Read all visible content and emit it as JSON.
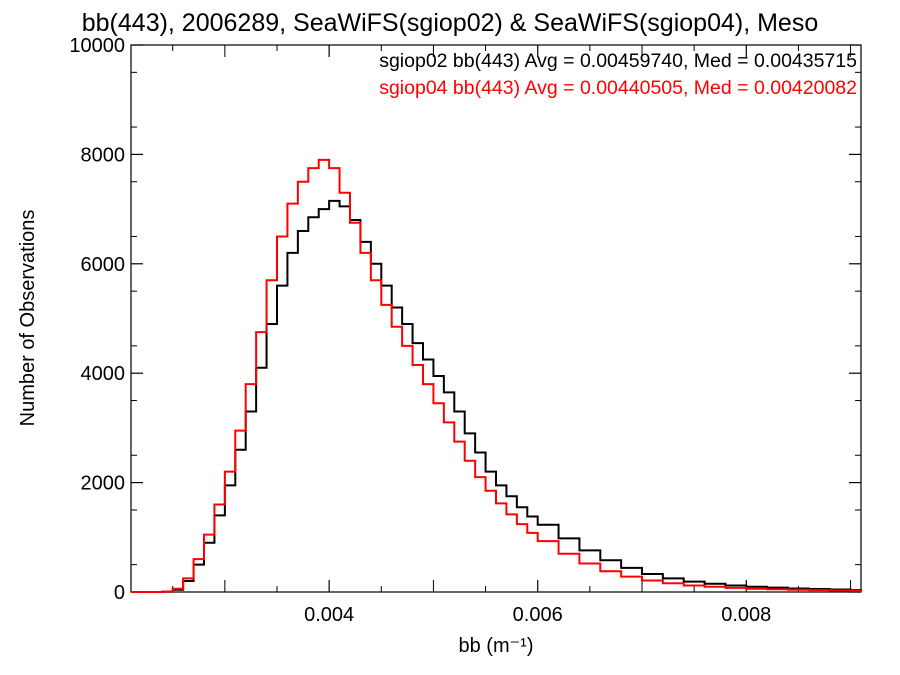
{
  "chart_data": {
    "type": "line",
    "title": "bb(443), 2006289, SeaWiFS(sgiop02) & SeaWiFS(sgiop04), Meso",
    "xlabel": "bb (m⁻¹)",
    "ylabel": "Number of Observations",
    "xlim": [
      0.0021,
      0.0091
    ],
    "ylim": [
      0,
      10000
    ],
    "x_ticks": [
      0.004,
      0.006,
      0.008
    ],
    "x_tick_labels": [
      "0.004",
      "0.006",
      "0.008"
    ],
    "y_ticks": [
      0,
      2000,
      4000,
      6000,
      8000,
      10000
    ],
    "y_tick_labels": [
      "0",
      "2000",
      "4000",
      "6000",
      "8000",
      "10000"
    ],
    "grid": false,
    "legend_position": "top-right",
    "annotations": [
      {
        "text": "sgiop02 bb(443) Avg = 0.00459740, Med = 0.00435715",
        "color": "#000000"
      },
      {
        "text": "sgiop04 bb(443) Avg = 0.00440505, Med = 0.00420082",
        "color": "#ff0000"
      }
    ],
    "series": [
      {
        "color": "#000000",
        "points": [
          [
            0.0021,
            0
          ],
          [
            0.0024,
            5
          ],
          [
            0.0025,
            40
          ],
          [
            0.0026,
            200
          ],
          [
            0.0027,
            500
          ],
          [
            0.0028,
            900
          ],
          [
            0.0029,
            1400
          ],
          [
            0.003,
            1950
          ],
          [
            0.0031,
            2600
          ],
          [
            0.0032,
            3300
          ],
          [
            0.0033,
            4100
          ],
          [
            0.0034,
            4900
          ],
          [
            0.0035,
            5600
          ],
          [
            0.0036,
            6200
          ],
          [
            0.0037,
            6600
          ],
          [
            0.0038,
            6850
          ],
          [
            0.0039,
            7000
          ],
          [
            0.004,
            7150
          ],
          [
            0.0041,
            7050
          ],
          [
            0.0042,
            6800
          ],
          [
            0.0043,
            6400
          ],
          [
            0.0044,
            6000
          ],
          [
            0.0045,
            5600
          ],
          [
            0.0046,
            5200
          ],
          [
            0.0047,
            4900
          ],
          [
            0.0048,
            4550
          ],
          [
            0.0049,
            4250
          ],
          [
            0.005,
            3950
          ],
          [
            0.0051,
            3650
          ],
          [
            0.0052,
            3300
          ],
          [
            0.0053,
            2900
          ],
          [
            0.0054,
            2550
          ],
          [
            0.0055,
            2200
          ],
          [
            0.0056,
            1950
          ],
          [
            0.0057,
            1750
          ],
          [
            0.0058,
            1550
          ],
          [
            0.0059,
            1380
          ],
          [
            0.006,
            1230
          ],
          [
            0.0062,
            980
          ],
          [
            0.0064,
            760
          ],
          [
            0.0066,
            580
          ],
          [
            0.0068,
            440
          ],
          [
            0.007,
            330
          ],
          [
            0.0072,
            250
          ],
          [
            0.0074,
            190
          ],
          [
            0.0076,
            150
          ],
          [
            0.0078,
            120
          ],
          [
            0.008,
            95
          ],
          [
            0.0082,
            80
          ],
          [
            0.0084,
            65
          ],
          [
            0.0086,
            55
          ],
          [
            0.0088,
            45
          ],
          [
            0.009,
            35
          ],
          [
            0.0091,
            30
          ]
        ]
      },
      {
        "color": "#ff0000",
        "points": [
          [
            0.0021,
            0
          ],
          [
            0.0024,
            10
          ],
          [
            0.0025,
            60
          ],
          [
            0.0026,
            250
          ],
          [
            0.0027,
            600
          ],
          [
            0.0028,
            1050
          ],
          [
            0.0029,
            1600
          ],
          [
            0.003,
            2200
          ],
          [
            0.0031,
            2950
          ],
          [
            0.0032,
            3800
          ],
          [
            0.0033,
            4750
          ],
          [
            0.0034,
            5700
          ],
          [
            0.0035,
            6500
          ],
          [
            0.0036,
            7100
          ],
          [
            0.0037,
            7500
          ],
          [
            0.0038,
            7750
          ],
          [
            0.0039,
            7900
          ],
          [
            0.004,
            7750
          ],
          [
            0.0041,
            7300
          ],
          [
            0.0042,
            6750
          ],
          [
            0.0043,
            6200
          ],
          [
            0.0044,
            5700
          ],
          [
            0.0045,
            5250
          ],
          [
            0.0046,
            4850
          ],
          [
            0.0047,
            4500
          ],
          [
            0.0048,
            4150
          ],
          [
            0.0049,
            3800
          ],
          [
            0.005,
            3450
          ],
          [
            0.0051,
            3100
          ],
          [
            0.0052,
            2750
          ],
          [
            0.0053,
            2400
          ],
          [
            0.0054,
            2100
          ],
          [
            0.0055,
            1850
          ],
          [
            0.0056,
            1620
          ],
          [
            0.0057,
            1420
          ],
          [
            0.0058,
            1240
          ],
          [
            0.0059,
            1080
          ],
          [
            0.006,
            930
          ],
          [
            0.0062,
            700
          ],
          [
            0.0064,
            520
          ],
          [
            0.0066,
            380
          ],
          [
            0.0068,
            280
          ],
          [
            0.007,
            210
          ],
          [
            0.0072,
            160
          ],
          [
            0.0074,
            120
          ],
          [
            0.0076,
            95
          ],
          [
            0.0078,
            75
          ],
          [
            0.008,
            60
          ],
          [
            0.0082,
            50
          ],
          [
            0.0084,
            42
          ],
          [
            0.0086,
            35
          ],
          [
            0.0088,
            28
          ],
          [
            0.009,
            22
          ],
          [
            0.0091,
            20
          ]
        ]
      }
    ]
  }
}
